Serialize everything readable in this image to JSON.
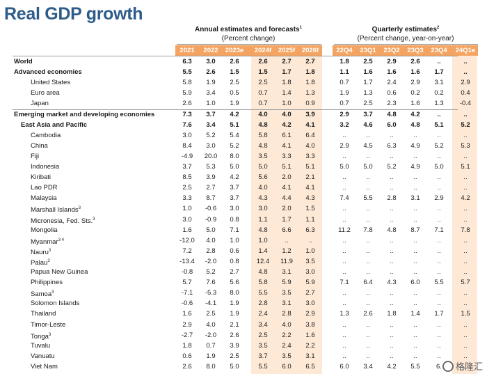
{
  "title": "Real GDP growth",
  "headers": {
    "annual_title": "Annual estimates and forecasts",
    "annual_title_note": "1",
    "annual_sub": "(Percent change)",
    "quarterly_title": "Quarterly estimates",
    "quarterly_title_note": "2",
    "quarterly_sub": "(Percent change, year-on-year)"
  },
  "annual_years": [
    "2021",
    "2022",
    "2023e",
    "2024f",
    "2025f",
    "2026f"
  ],
  "quarter_labels": [
    "22Q4",
    "23Q1",
    "23Q2",
    "23Q3",
    "23Q4",
    "24Q1e"
  ],
  "rows": [
    {
      "label": "World",
      "note": "",
      "bold": true,
      "annual": [
        "6.3",
        "3.0",
        "2.6",
        "2.6",
        "2.7",
        "2.7"
      ],
      "quarterly": [
        "1.8",
        "2.5",
        "2.9",
        "2.6",
        "..",
        ".."
      ]
    },
    {
      "label": "Advanced economies",
      "note": "",
      "bold": true,
      "annual": [
        "5.5",
        "2.6",
        "1.5",
        "1.5",
        "1.7",
        "1.8"
      ],
      "quarterly": [
        "1.1",
        "1.6",
        "1.6",
        "1.6",
        "1.7",
        ".."
      ]
    },
    {
      "label": "United States",
      "note": "",
      "bold": false,
      "annual": [
        "5.8",
        "1.9",
        "2.5",
        "2.5",
        "1.8",
        "1.8"
      ],
      "quarterly": [
        "0.7",
        "1.7",
        "2.4",
        "2.9",
        "3.1",
        "2.9"
      ]
    },
    {
      "label": "Euro area",
      "note": "",
      "bold": false,
      "annual": [
        "5.9",
        "3.4",
        "0.5",
        "0.7",
        "1.4",
        "1.3"
      ],
      "quarterly": [
        "1.9",
        "1.3",
        "0.6",
        "0.2",
        "0.2",
        "0.4"
      ]
    },
    {
      "label": "Japan",
      "note": "",
      "bold": false,
      "annual": [
        "2.6",
        "1.0",
        "1.9",
        "0.7",
        "1.0",
        "0.9"
      ],
      "quarterly": [
        "0.7",
        "2.5",
        "2.3",
        "1.6",
        "1.3",
        "-0.4"
      ]
    },
    {
      "label": "Emerging market and developing economies",
      "note": "",
      "bold": true,
      "annual": [
        "7.3",
        "3.7",
        "4.2",
        "4.0",
        "4.0",
        "3.9"
      ],
      "quarterly": [
        "2.9",
        "3.7",
        "4.8",
        "4.2",
        "..",
        ".."
      ]
    },
    {
      "label": "East Asia and Pacific",
      "note": "",
      "bold": true,
      "annual": [
        "7.6",
        "3.4",
        "5.1",
        "4.8",
        "4.2",
        "4.1"
      ],
      "quarterly": [
        "3.2",
        "4.6",
        "6.0",
        "4.8",
        "5.1",
        "5.2"
      ]
    },
    {
      "label": "Cambodia",
      "note": "",
      "bold": false,
      "annual": [
        "3.0",
        "5.2",
        "5.4",
        "5.8",
        "6.1",
        "6.4"
      ],
      "quarterly": [
        "..",
        "..",
        "..",
        "..",
        "..",
        ".."
      ]
    },
    {
      "label": "China",
      "note": "",
      "bold": false,
      "annual": [
        "8.4",
        "3.0",
        "5.2",
        "4.8",
        "4.1",
        "4.0"
      ],
      "quarterly": [
        "2.9",
        "4.5",
        "6.3",
        "4.9",
        "5.2",
        "5.3"
      ]
    },
    {
      "label": "Fiji",
      "note": "",
      "bold": false,
      "annual": [
        "-4.9",
        "20.0",
        "8.0",
        "3.5",
        "3.3",
        "3.3"
      ],
      "quarterly": [
        "..",
        "..",
        "..",
        "..",
        "..",
        ".."
      ]
    },
    {
      "label": "Indonesia",
      "note": "",
      "bold": false,
      "annual": [
        "3.7",
        "5.3",
        "5.0",
        "5.0",
        "5.1",
        "5.1"
      ],
      "quarterly": [
        "5.0",
        "5.0",
        "5.2",
        "4.9",
        "5.0",
        "5.1"
      ]
    },
    {
      "label": "Kiribati",
      "note": "",
      "bold": false,
      "annual": [
        "8.5",
        "3.9",
        "4.2",
        "5.6",
        "2.0",
        "2.1"
      ],
      "quarterly": [
        "..",
        "..",
        "..",
        "..",
        "..",
        ".."
      ]
    },
    {
      "label": "Lao PDR",
      "note": "",
      "bold": false,
      "annual": [
        "2.5",
        "2.7",
        "3.7",
        "4.0",
        "4.1",
        "4.1"
      ],
      "quarterly": [
        "..",
        "..",
        "..",
        "..",
        "..",
        ".."
      ]
    },
    {
      "label": "Malaysia",
      "note": "",
      "bold": false,
      "annual": [
        "3.3",
        "8.7",
        "3.7",
        "4.3",
        "4.4",
        "4.3"
      ],
      "quarterly": [
        "7.4",
        "5.5",
        "2.8",
        "3.1",
        "2.9",
        "4.2"
      ]
    },
    {
      "label": "Marshall Islands",
      "note": "3",
      "bold": false,
      "annual": [
        "1.0",
        "-0.6",
        "3.0",
        "3.0",
        "2.0",
        "1.5"
      ],
      "quarterly": [
        "..",
        "..",
        "..",
        "..",
        "..",
        ".."
      ]
    },
    {
      "label": "Micronesia, Fed. Sts.",
      "note": "3",
      "bold": false,
      "annual": [
        "3.0",
        "-0.9",
        "0.8",
        "1.1",
        "1.7",
        "1.1"
      ],
      "quarterly": [
        "..",
        "..",
        "..",
        "..",
        "..",
        ".."
      ]
    },
    {
      "label": "Mongolia",
      "note": "",
      "bold": false,
      "annual": [
        "1.6",
        "5.0",
        "7.1",
        "4.8",
        "6.6",
        "6.3"
      ],
      "quarterly": [
        "11.2",
        "7.8",
        "4.8",
        "8.7",
        "7.1",
        "7.8"
      ]
    },
    {
      "label": "Myanmar",
      "note": "3 4",
      "bold": false,
      "annual": [
        "-12.0",
        "4.0",
        "1.0",
        "1.0",
        "..",
        ".."
      ],
      "quarterly": [
        "..",
        "..",
        "..",
        "..",
        "..",
        ".."
      ]
    },
    {
      "label": "Nauru",
      "note": "3",
      "bold": false,
      "annual": [
        "7.2",
        "2.8",
        "0.6",
        "1.4",
        "1.2",
        "1.0"
      ],
      "quarterly": [
        "..",
        "..",
        "..",
        "..",
        "..",
        ".."
      ]
    },
    {
      "label": "Palau",
      "note": "3",
      "bold": false,
      "annual": [
        "-13.4",
        "-2.0",
        "0.8",
        "12.4",
        "11.9",
        "3.5"
      ],
      "quarterly": [
        "..",
        "..",
        "..",
        "..",
        "..",
        ".."
      ]
    },
    {
      "label": "Papua New Guinea",
      "note": "",
      "bold": false,
      "annual": [
        "-0.8",
        "5.2",
        "2.7",
        "4.8",
        "3.1",
        "3.0"
      ],
      "quarterly": [
        "..",
        "..",
        "..",
        "..",
        "..",
        ".."
      ]
    },
    {
      "label": "Philippines",
      "note": "",
      "bold": false,
      "annual": [
        "5.7",
        "7.6",
        "5.6",
        "5.8",
        "5.9",
        "5.9"
      ],
      "quarterly": [
        "7.1",
        "6.4",
        "4.3",
        "6.0",
        "5.5",
        "5.7"
      ]
    },
    {
      "label": "Samoa",
      "note": "3",
      "bold": false,
      "annual": [
        "-7.1",
        "-5.3",
        "8.0",
        "5.5",
        "3.5",
        "2.7"
      ],
      "quarterly": [
        "..",
        "..",
        "..",
        "..",
        "..",
        ".."
      ]
    },
    {
      "label": "Solomon Islands",
      "note": "",
      "bold": false,
      "annual": [
        "-0.6",
        "-4.1",
        "1.9",
        "2.8",
        "3.1",
        "3.0"
      ],
      "quarterly": [
        "..",
        "..",
        "..",
        "..",
        "..",
        ".."
      ]
    },
    {
      "label": "Thailand",
      "note": "",
      "bold": false,
      "annual": [
        "1.6",
        "2.5",
        "1.9",
        "2.4",
        "2.8",
        "2.9"
      ],
      "quarterly": [
        "1.3",
        "2.6",
        "1.8",
        "1.4",
        "1.7",
        "1.5"
      ]
    },
    {
      "label": "Timor-Leste",
      "note": "",
      "bold": false,
      "annual": [
        "2.9",
        "4.0",
        "2.1",
        "3.4",
        "4.0",
        "3.8"
      ],
      "quarterly": [
        "..",
        "..",
        "..",
        "..",
        "..",
        ".."
      ]
    },
    {
      "label": "Tonga",
      "note": "3",
      "bold": false,
      "annual": [
        "-2.7",
        "-2.0",
        "2.6",
        "2.5",
        "2.2",
        "1.6"
      ],
      "quarterly": [
        "..",
        "..",
        "..",
        "..",
        "..",
        ".."
      ]
    },
    {
      "label": "Tuvalu",
      "note": "",
      "bold": false,
      "annual": [
        "1.8",
        "0.7",
        "3.9",
        "3.5",
        "2.4",
        "2.2"
      ],
      "quarterly": [
        "..",
        "..",
        "..",
        "..",
        "..",
        ".."
      ]
    },
    {
      "label": "Vanuatu",
      "note": "",
      "bold": false,
      "annual": [
        "0.6",
        "1.9",
        "2.5",
        "3.7",
        "3.5",
        "3.1"
      ],
      "quarterly": [
        "..",
        "..",
        "..",
        "..",
        "..",
        ".."
      ]
    },
    {
      "label": "Viet Nam",
      "note": "",
      "bold": false,
      "annual": [
        "2.6",
        "8.0",
        "5.0",
        "5.5",
        "6.0",
        "6.5"
      ],
      "quarterly": [
        "6.0",
        "3.4",
        "4.2",
        "5.5",
        "6.",
        ".."
      ]
    }
  ],
  "watermark": "格隆汇",
  "colors": {
    "title": "#2e5c8a",
    "accent": "#f4a460",
    "shade": "#fde9d6"
  }
}
